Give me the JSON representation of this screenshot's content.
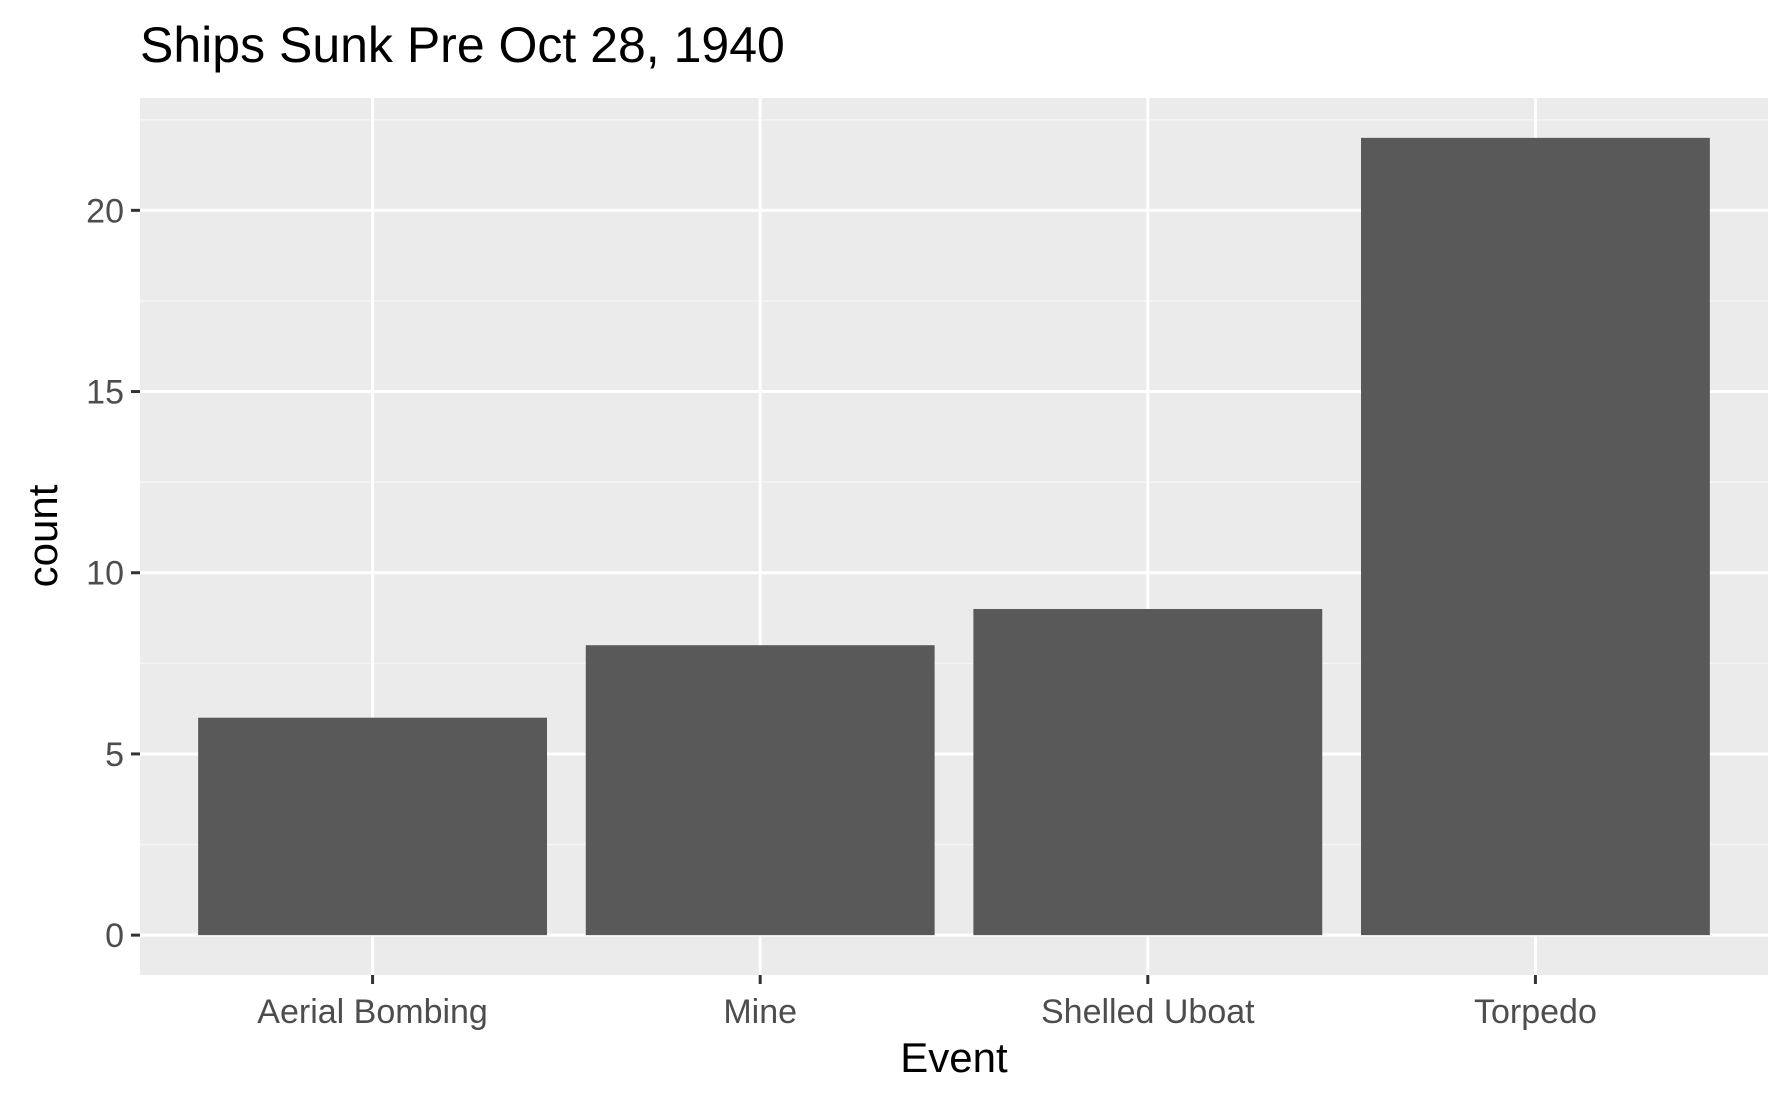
{
  "chart_data": {
    "type": "bar",
    "title": "Ships Sunk Pre Oct 28, 1940",
    "xlabel": "Event",
    "ylabel": "count",
    "categories": [
      "Aerial Bombing",
      "Mine",
      "Shelled Uboat",
      "Torpedo"
    ],
    "values": [
      6,
      8,
      9,
      22
    ],
    "ylim": [
      -1.1,
      23.1
    ],
    "yticks": [
      0,
      5,
      10,
      15,
      20
    ],
    "ytick_labels": [
      "0",
      "5",
      "10",
      "15",
      "20"
    ],
    "grid": true,
    "legend": "none"
  },
  "colors": {
    "panel_background": "#ebebeb",
    "grid_major": "#ffffff",
    "grid_minor": "#f5f5f5",
    "bar_fill": "#595959",
    "tick_mark": "#333333",
    "tick_label": "#4d4d4d"
  }
}
